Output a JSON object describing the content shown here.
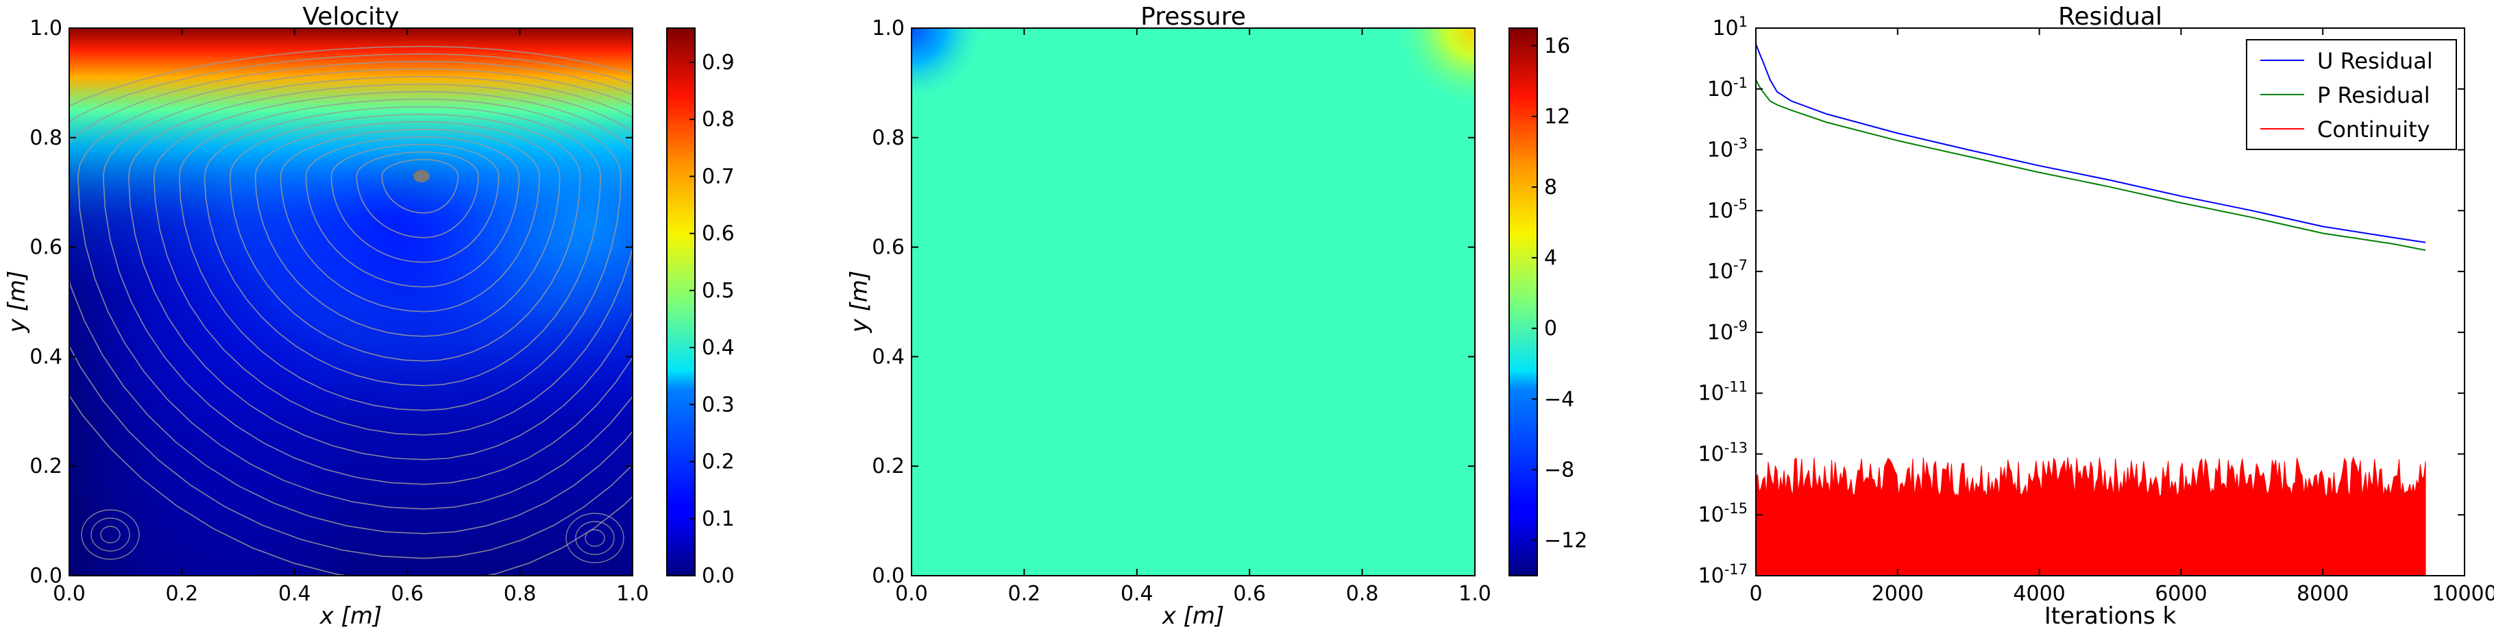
{
  "figure": {
    "panels": [
      "Velocity",
      "Pressure",
      "Residual"
    ]
  },
  "chart_data": [
    {
      "type": "heatmap",
      "title": "Velocity",
      "xlabel": "x [m]",
      "ylabel": "y [m]",
      "xlim": [
        0.0,
        1.0
      ],
      "ylim": [
        0.0,
        1.0
      ],
      "x_ticks": [
        "0.0",
        "0.2",
        "0.4",
        "0.6",
        "0.8",
        "1.0"
      ],
      "y_ticks": [
        "0.0",
        "0.2",
        "0.4",
        "0.6",
        "0.8",
        "1.0"
      ],
      "colormap": "jet",
      "overlay": "streamlines",
      "streamline_color": "#9a9a9a",
      "vortex_center": [
        0.63,
        0.73
      ],
      "colorbar": {
        "min": 0.0,
        "max": 0.96,
        "ticks": [
          "0.0",
          "0.1",
          "0.2",
          "0.3",
          "0.4",
          "0.5",
          "0.6",
          "0.7",
          "0.8",
          "0.9"
        ]
      }
    },
    {
      "type": "heatmap",
      "title": "Pressure",
      "xlabel": "x [m]",
      "ylabel": "y [m]",
      "xlim": [
        0.0,
        1.0
      ],
      "ylim": [
        0.0,
        1.0
      ],
      "x_ticks": [
        "0.0",
        "0.2",
        "0.4",
        "0.6",
        "0.8",
        "1.0"
      ],
      "y_ticks": [
        "0.0",
        "0.2",
        "0.4",
        "0.6",
        "0.8",
        "1.0"
      ],
      "colormap": "jet",
      "background_value": -1.5,
      "corner_values": {
        "top_left": -5,
        "top_right": 6
      },
      "colorbar": {
        "min": -14,
        "max": 17,
        "ticks": [
          "16",
          "12",
          "8",
          "4",
          "0",
          "−4",
          "−8",
          "−12"
        ]
      }
    },
    {
      "type": "line",
      "title": "Residual",
      "xlabel": "Iterations k",
      "ylabel": "",
      "yscale": "log",
      "xlim": [
        0,
        10000
      ],
      "ylim": [
        1e-17,
        10
      ],
      "x_ticks": [
        "0",
        "2000",
        "4000",
        "6000",
        "8000",
        "10000"
      ],
      "y_ticks": [
        {
          "base": "10",
          "exp": "1"
        },
        {
          "base": "10",
          "exp": "-1"
        },
        {
          "base": "10",
          "exp": "-3"
        },
        {
          "base": "10",
          "exp": "-5"
        },
        {
          "base": "10",
          "exp": "-7"
        },
        {
          "base": "10",
          "exp": "-9"
        },
        {
          "base": "10",
          "exp": "-11"
        },
        {
          "base": "10",
          "exp": "-13"
        },
        {
          "base": "10",
          "exp": "-15"
        },
        {
          "base": "10",
          "exp": "-17"
        }
      ],
      "legend_position": "top-right",
      "series": [
        {
          "name": "U Residual",
          "color": "#0000ff",
          "x": [
            0,
            50,
            100,
            200,
            300,
            500,
            1000,
            2000,
            3000,
            4000,
            5000,
            6000,
            7000,
            8000,
            9000,
            9450
          ],
          "y": [
            3.0,
            1.5,
            0.8,
            0.2,
            0.08,
            0.04,
            0.015,
            0.0035,
            0.001,
            0.0003,
            0.0001,
            3e-05,
            1e-05,
            3e-06,
            1.3e-06,
            9e-07
          ]
        },
        {
          "name": "P Residual",
          "color": "#008000",
          "x": [
            0,
            50,
            100,
            200,
            300,
            500,
            1000,
            2000,
            3000,
            4000,
            5000,
            6000,
            7000,
            8000,
            9000,
            9450
          ],
          "y": [
            0.2,
            0.12,
            0.08,
            0.04,
            0.03,
            0.02,
            0.008,
            0.002,
            0.0006,
            0.00018,
            6e-05,
            1.8e-05,
            6e-06,
            1.8e-06,
            8e-07,
            5e-07
          ]
        },
        {
          "name": "Continuity",
          "color": "#ff0000",
          "x": [
            0,
            9450
          ],
          "band_bottom": 1e-17,
          "band_top_typical": 3e-14,
          "band_top_peak": 8e-14
        }
      ]
    }
  ]
}
